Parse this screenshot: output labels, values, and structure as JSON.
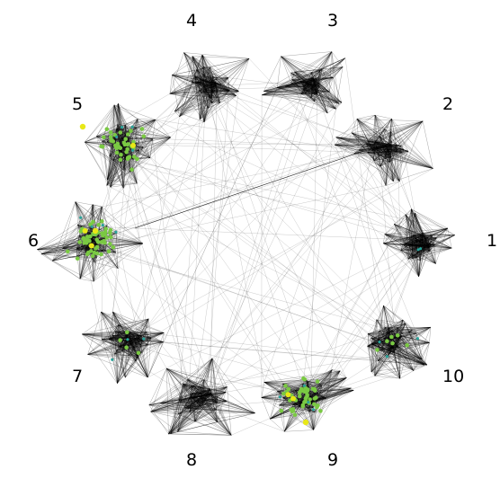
{
  "diagram": {
    "type": "clustered-network",
    "background": "#ffffff",
    "edge_color": "#000000",
    "highlight_colors": {
      "green": "#7ac943",
      "yellow": "#e8e817",
      "teal": "#2aa198"
    },
    "clusters": [
      {
        "label": "1"
      },
      {
        "label": "2"
      },
      {
        "label": "3"
      },
      {
        "label": "4"
      },
      {
        "label": "5"
      },
      {
        "label": "6"
      },
      {
        "label": "7"
      },
      {
        "label": "8"
      },
      {
        "label": "9"
      },
      {
        "label": "10"
      }
    ]
  }
}
